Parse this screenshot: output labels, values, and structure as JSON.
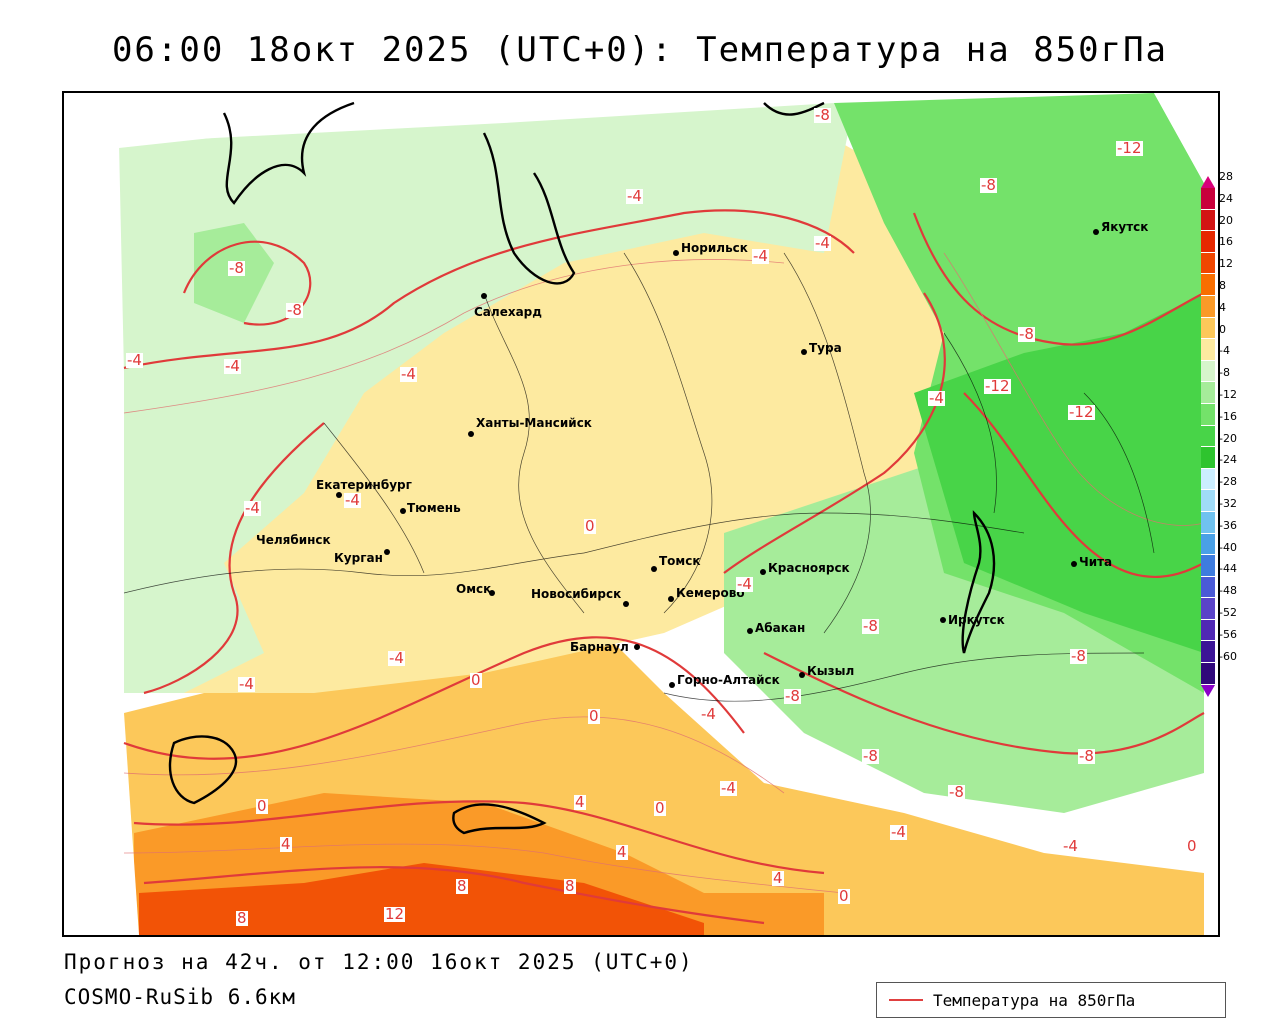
{
  "title": "06:00 18окт 2025 (UTC+0): Температура на 850гПа",
  "forecast_line": "Прогноз на 42ч. от 12:00 16окт 2025 (UTC+0)",
  "model_line": "COSMO-RuSib 6.6км",
  "legend": {
    "label": "Температура на 850гПа",
    "line_color": "#e04040"
  },
  "colorbar": {
    "labels": [
      "28",
      "24",
      "20",
      "16",
      "12",
      "8",
      "4",
      "0",
      "-4",
      "-8",
      "-12",
      "-16",
      "-20",
      "-24",
      "-28",
      "-32",
      "-36",
      "-40",
      "-44",
      "-48",
      "-52",
      "-56",
      "-60"
    ],
    "colors": [
      "#c8003c",
      "#d21414",
      "#e62800",
      "#f04600",
      "#f86e00",
      "#fa9a28",
      "#fcc85a",
      "#fdeaa0",
      "#d6f5cc",
      "#a6ec9a",
      "#74e26a",
      "#48d448",
      "#2ec42e",
      "#cceeff",
      "#a0dcf8",
      "#70c2ef",
      "#4aa0e6",
      "#3e7cde",
      "#4a5ad6",
      "#5a44c8",
      "#5028b4",
      "#3c1496",
      "#30087a"
    ],
    "top_color": "#d8007a",
    "bottom_color": "#8a00c8"
  },
  "cities": [
    {
      "name": "Салехард"
    },
    {
      "name": "Норильск"
    },
    {
      "name": "Якутск"
    },
    {
      "name": "Тура"
    },
    {
      "name": "Ханты-Мансийск"
    },
    {
      "name": "Екатеринбург"
    },
    {
      "name": "Тюмень"
    },
    {
      "name": "Челябинск"
    },
    {
      "name": "Курган"
    },
    {
      "name": "Омск"
    },
    {
      "name": "Новосибирск"
    },
    {
      "name": "Томск"
    },
    {
      "name": "Кемерово"
    },
    {
      "name": "Красноярск"
    },
    {
      "name": "Барнаул"
    },
    {
      "name": "Абакан"
    },
    {
      "name": "Кызыл"
    },
    {
      "name": "Горно-Алтайск"
    },
    {
      "name": "Иркутск"
    },
    {
      "name": "Чита"
    }
  ],
  "isotherm_labels": [
    "-8",
    "-12",
    "-8",
    "-4",
    "-4",
    "-4",
    "-8",
    "-8",
    "-4",
    "-4",
    "-4",
    "-8",
    "-4",
    "-12",
    "-12",
    "-4",
    "-4",
    "0",
    "-4",
    "-4",
    "-4",
    "0",
    "0",
    "-8",
    "-8",
    "-8",
    "-8",
    "-8",
    "-4",
    "-4",
    "0",
    "4",
    "0",
    "4",
    "8",
    "8",
    "4",
    "0",
    "12",
    "4",
    "8",
    "-4",
    "-4",
    "0",
    "-8"
  ]
}
